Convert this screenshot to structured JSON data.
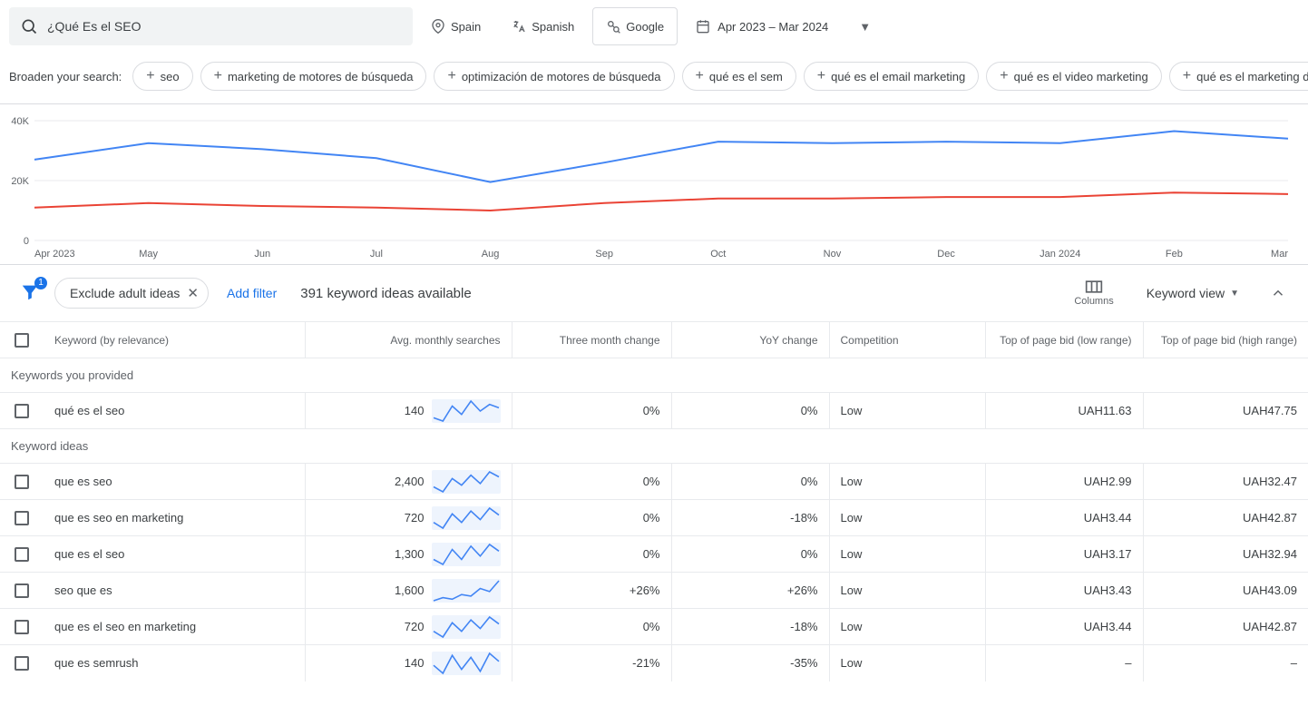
{
  "search": {
    "value": "¿Qué Es el SEO"
  },
  "controls": {
    "location": "Spain",
    "language": "Spanish",
    "engine": "Google",
    "date_range": "Apr 2023 – Mar 2024"
  },
  "broaden": {
    "label": "Broaden your search:",
    "chips": [
      "seo",
      "marketing de motores de búsqueda",
      "optimización de motores de búsqueda",
      "qué es el sem",
      "qué es el email marketing",
      "qué es el video marketing",
      "qué es el marketing de contenidos"
    ]
  },
  "chart": {
    "y_ticks": [
      "40K",
      "20K",
      "0"
    ],
    "x_ticks": [
      "Apr 2023",
      "May",
      "Jun",
      "Jul",
      "Aug",
      "Sep",
      "Oct",
      "Nov",
      "Dec",
      "Jan 2024",
      "Feb",
      "Mar"
    ],
    "x_ticks_n": 12,
    "y_max": 40000,
    "series": [
      {
        "name": "blue",
        "color": "#4285f4",
        "values": [
          27000,
          32500,
          30500,
          27500,
          19500,
          26000,
          33000,
          32500,
          33000,
          32500,
          36500,
          34000
        ]
      },
      {
        "name": "red",
        "color": "#ea4335",
        "values": [
          11000,
          12500,
          11500,
          11000,
          10000,
          12500,
          14000,
          14000,
          14500,
          14500,
          16000,
          15500
        ]
      }
    ],
    "grid_color": "#e8eaed",
    "axis_font": 11
  },
  "filters": {
    "filter_badge": "1",
    "pill_label": "Exclude adult ideas",
    "add_filter": "Add filter",
    "summary": "391 keyword ideas available",
    "columns_label": "Columns",
    "view_label": "Keyword view"
  },
  "table": {
    "headers": {
      "keyword": "Keyword (by relevance)",
      "avg": "Avg. monthly searches",
      "three_month": "Three month change",
      "yoy": "YoY change",
      "competition": "Competition",
      "bid_low": "Top of page bid (low range)",
      "bid_high": "Top of page bid (high range)"
    },
    "sections": [
      {
        "title": "Keywords you provided",
        "rows": [
          {
            "keyword": "qué es el seo",
            "avg": "140",
            "spark": [
              110,
              100,
              145,
              120,
              160,
              130,
              150,
              140
            ],
            "three_month": "0%",
            "yoy": "0%",
            "competition": "Low",
            "bid_low": "UAH11.63",
            "bid_high": "UAH47.75"
          }
        ]
      },
      {
        "title": "Keyword ideas",
        "rows": [
          {
            "keyword": "que es seo",
            "avg": "2,400",
            "spark": [
              2000,
              1700,
              2500,
              2100,
              2700,
              2200,
              2900,
              2600
            ],
            "three_month": "0%",
            "yoy": "0%",
            "competition": "Low",
            "bid_low": "UAH2.99",
            "bid_high": "UAH32.47"
          },
          {
            "keyword": "que es seo en marketing",
            "avg": "720",
            "spark": [
              650,
              550,
              800,
              650,
              850,
              700,
              900,
              780
            ],
            "three_month": "0%",
            "yoy": "-18%",
            "competition": "Low",
            "bid_low": "UAH3.44",
            "bid_high": "UAH42.87"
          },
          {
            "keyword": "que es el seo",
            "avg": "1,300",
            "spark": [
              1100,
              950,
              1400,
              1100,
              1500,
              1200,
              1550,
              1350
            ],
            "three_month": "0%",
            "yoy": "0%",
            "competition": "Low",
            "bid_low": "UAH3.17",
            "bid_high": "UAH32.94"
          },
          {
            "keyword": "seo que es",
            "avg": "1,600",
            "spark": [
              1300,
              1400,
              1350,
              1500,
              1450,
              1700,
              1600,
              1950
            ],
            "three_month": "+26%",
            "yoy": "+26%",
            "competition": "Low",
            "bid_low": "UAH3.43",
            "bid_high": "UAH43.09"
          },
          {
            "keyword": "que es el seo en marketing",
            "avg": "720",
            "spark": [
              650,
              550,
              800,
              650,
              850,
              700,
              900,
              780
            ],
            "three_month": "0%",
            "yoy": "-18%",
            "competition": "Low",
            "bid_low": "UAH3.44",
            "bid_high": "UAH42.87"
          },
          {
            "keyword": "que es semrush",
            "avg": "140",
            "spark": [
              130,
              110,
              155,
              120,
              150,
              115,
              160,
              140
            ],
            "three_month": "-21%",
            "yoy": "-35%",
            "competition": "Low",
            "bid_low": "–",
            "bid_high": "–"
          }
        ]
      }
    ]
  }
}
